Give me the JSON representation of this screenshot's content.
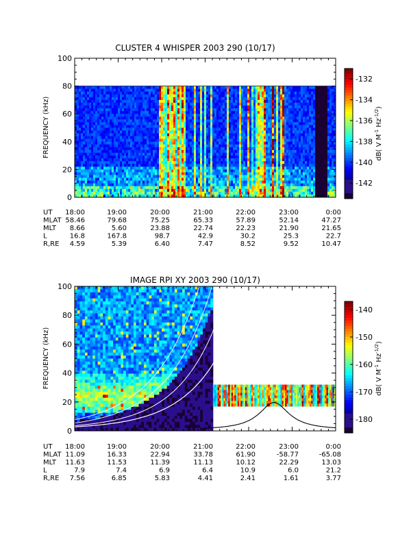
{
  "chart_data": [
    {
      "type": "heatmap",
      "title": "CLUSTER 4 WHISPER 2003 290 (10/17)",
      "ylabel": "FREQUENCY (kHz)",
      "x": [
        "18:00",
        "19:00",
        "20:00",
        "21:00",
        "22:00",
        "23:00",
        "0:00"
      ],
      "yticks": [
        "0",
        "20",
        "40",
        "60",
        "80",
        "100"
      ],
      "ylim": [
        0,
        100
      ],
      "data_max_frequency_khz": 80,
      "colorbar": {
        "label": "dB( V M",
        "label_sup1": "-1",
        "label_mid": " Hz",
        "label_sup2": "-1/2",
        "label_end": ")",
        "ticks": [
          "-132",
          "-134",
          "-136",
          "-138",
          "-140",
          "-142"
        ],
        "range": [
          -143.5,
          -131
        ]
      },
      "ephemeris": [
        {
          "label": "UT",
          "values": [
            "18:00",
            "19:00",
            "20:00",
            "21:00",
            "22:00",
            "23:00",
            "0:00"
          ]
        },
        {
          "label": "MLAT",
          "values": [
            "58.46",
            "79.68",
            "75.25",
            "65.33",
            "57.89",
            "52.14",
            "47.27"
          ]
        },
        {
          "label": "MLT",
          "values": [
            "8.66",
            "5.60",
            "23.88",
            "22.74",
            "22.23",
            "21.90",
            "21.65"
          ]
        },
        {
          "label": "L",
          "values": [
            "16.8",
            "167.8",
            "98.7",
            "42.9",
            "30.2",
            "25.3",
            "22.7"
          ]
        },
        {
          "label": "R,RE",
          "values": [
            "4.59",
            "5.39",
            "6.40",
            "7.47",
            "8.52",
            "9.52",
            "10.47"
          ]
        }
      ]
    },
    {
      "type": "heatmap",
      "title": "IMAGE RPI XY 2003 290 (10/17)",
      "ylabel": "FREQUENCY (kHz)",
      "x": [
        "18:00",
        "19:00",
        "20:00",
        "21:00",
        "22:00",
        "23:00",
        "0:00"
      ],
      "yticks": [
        "0",
        "20",
        "40",
        "60",
        "80",
        "100"
      ],
      "ylim": [
        0,
        100
      ],
      "colorbar": {
        "label": "dB( V M",
        "label_sup1": "-1",
        "label_mid": " Hz",
        "label_sup2": "-1/2",
        "label_end": ")",
        "ticks": [
          "-140",
          "-150",
          "-160",
          "-170",
          "-180"
        ],
        "range": [
          -185,
          -137
        ]
      },
      "overlay_curve_peak": {
        "time": "22:35",
        "frequency_khz": 19
      },
      "ephemeris": [
        {
          "label": "UT",
          "values": [
            "18:00",
            "19:00",
            "20:00",
            "21:00",
            "22:00",
            "23:00",
            "0:00"
          ]
        },
        {
          "label": "MLAT",
          "values": [
            "11.09",
            "16.33",
            "22.94",
            "33.78",
            "61.90",
            "-58.77",
            "-65.08"
          ]
        },
        {
          "label": "MLT",
          "values": [
            "11.63",
            "11.53",
            "11.39",
            "11.13",
            "10.12",
            "22.29",
            "13.03"
          ]
        },
        {
          "label": "L",
          "values": [
            "7.9",
            "7.4",
            "6.9",
            "6.4",
            "10.9",
            "6.0",
            "21.2"
          ]
        },
        {
          "label": "R,RE",
          "values": [
            "7.56",
            "6.85",
            "5.83",
            "4.41",
            "2.41",
            "1.61",
            "3.77"
          ]
        }
      ]
    }
  ]
}
